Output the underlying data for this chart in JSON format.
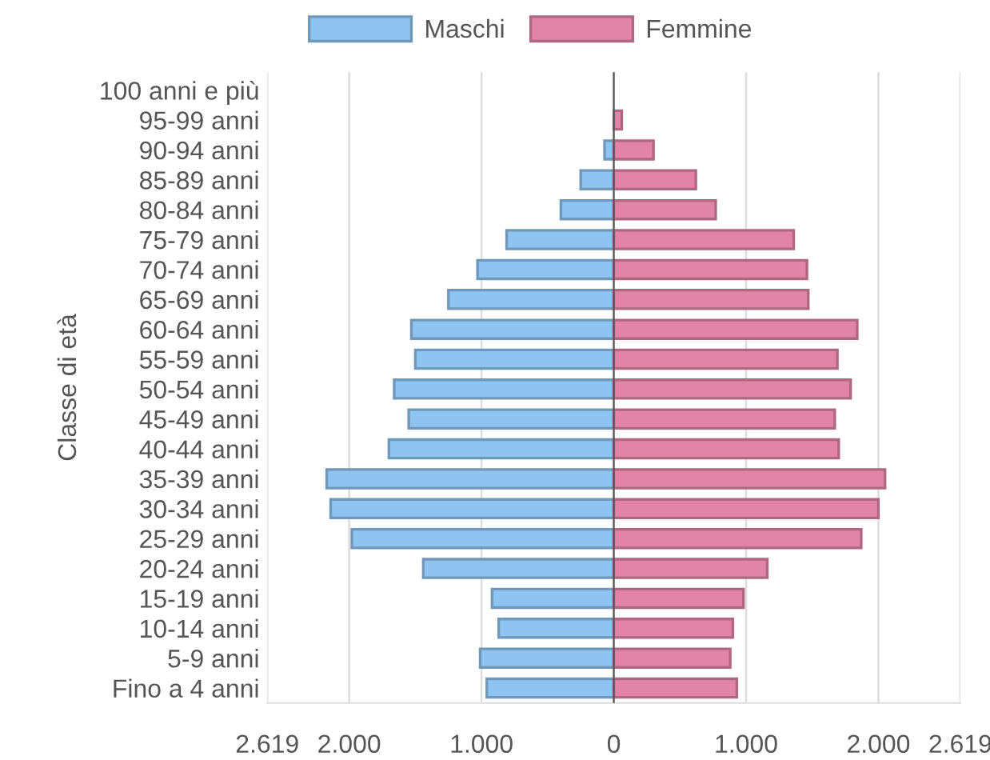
{
  "chart_data": {
    "type": "bar",
    "orientation": "horizontal",
    "stacked": true,
    "ylabel": "Classe di età",
    "categories": [
      "100 anni e più",
      "95-99 anni",
      "90-94 anni",
      "85-89 anni",
      "80-84 anni",
      "75-79 anni",
      "70-74 anni",
      "65-69 anni",
      "60-64 anni",
      "55-59 anni",
      "50-54 anni",
      "45-49 anni",
      "40-44 anni",
      "35-39 anni",
      "30-34 anni",
      "25-29 anni",
      "20-24 anni",
      "15-19 anni",
      "10-14 anni",
      "5-9 anni",
      "Fino a 4 anni"
    ],
    "series": [
      {
        "name": "Maschi",
        "color": "#8fc3f0",
        "values": [
          0,
          null,
          -70,
          -250,
          -400,
          -810,
          -1030,
          -1250,
          -1530,
          -1500,
          -1660,
          -1550,
          -1700,
          -2170,
          -2140,
          -1980,
          -1440,
          -920,
          -870,
          -1010,
          -960
        ]
      },
      {
        "name": "Femmine",
        "color": "#e184a5",
        "values": [
          0,
          60,
          300,
          620,
          770,
          1360,
          1460,
          1470,
          1840,
          1690,
          1790,
          1670,
          1700,
          2050,
          2000,
          1870,
          1160,
          980,
          900,
          880,
          930
        ]
      }
    ],
    "xlim": [
      -2619,
      2619
    ],
    "xticks": [
      {
        "value": -2619,
        "label": "2.619"
      },
      {
        "value": -2000,
        "label": "2.000"
      },
      {
        "value": -1000,
        "label": "1.000"
      },
      0,
      {
        "value": 1000,
        "label": "1.000"
      },
      {
        "value": 2000,
        "label": "2.000"
      },
      {
        "value": 2619,
        "label": "2.619"
      }
    ],
    "grid": "x",
    "legend": "top"
  }
}
